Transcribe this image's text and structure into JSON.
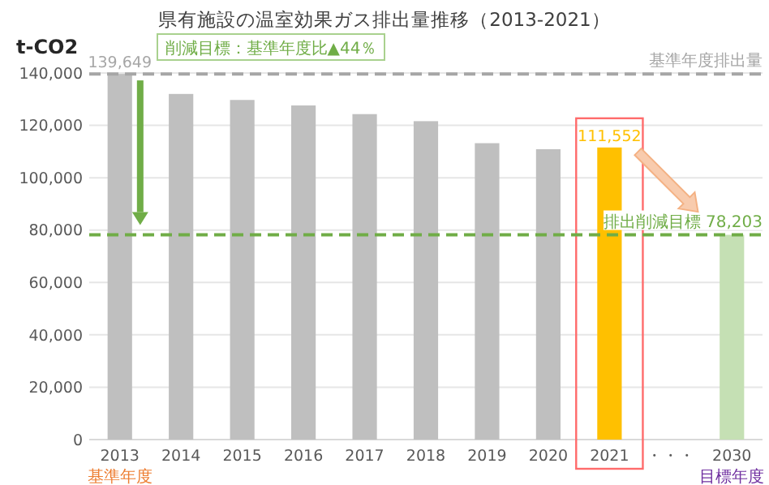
{
  "chart_data": {
    "type": "bar",
    "title": "県有施設の温室効果ガス排出量推移（2013-2021）",
    "ylabel": "t-CO2",
    "categories": [
      "2013",
      "2014",
      "2015",
      "2016",
      "2017",
      "2018",
      "2019",
      "2020",
      "2021",
      "・・・",
      "2030"
    ],
    "values": [
      139649,
      132000,
      129700,
      127600,
      124300,
      121600,
      113200,
      110900,
      111552,
      null,
      78203
    ],
    "colors": [
      "#bfbfbf",
      "#bfbfbf",
      "#bfbfbf",
      "#bfbfbf",
      "#bfbfbf",
      "#bfbfbf",
      "#bfbfbf",
      "#bfbfbf",
      "#ffc000",
      null,
      "#c5e0b4"
    ],
    "value_labels": [
      "139,649",
      null,
      null,
      null,
      null,
      null,
      null,
      null,
      "111,552",
      null,
      null
    ],
    "ylim": [
      0,
      140000
    ],
    "yticks": [
      {
        "value": 0,
        "label": "0"
      },
      {
        "value": 20000,
        "label": "20,000"
      },
      {
        "value": 40000,
        "label": "40,000"
      },
      {
        "value": 60000,
        "label": "60,000"
      },
      {
        "value": 80000,
        "label": "80,000"
      },
      {
        "value": 100000,
        "label": "100,000"
      },
      {
        "value": 120000,
        "label": "120,000"
      },
      {
        "value": 140000,
        "label": "140,000"
      }
    ],
    "grid": "y",
    "ref_lines": [
      {
        "axis": "y",
        "value": 139649,
        "label": "基準年度排出量",
        "color": "#a6a6a6",
        "line_style": "dashed"
      },
      {
        "axis": "y",
        "value": 78203,
        "label": "排出削減目標 78,203",
        "color": "#70ad47",
        "line_style": "dashed"
      }
    ],
    "annotations": [
      "削減目標：基準年度比▲44％",
      "基準年度",
      "目標年度"
    ]
  }
}
